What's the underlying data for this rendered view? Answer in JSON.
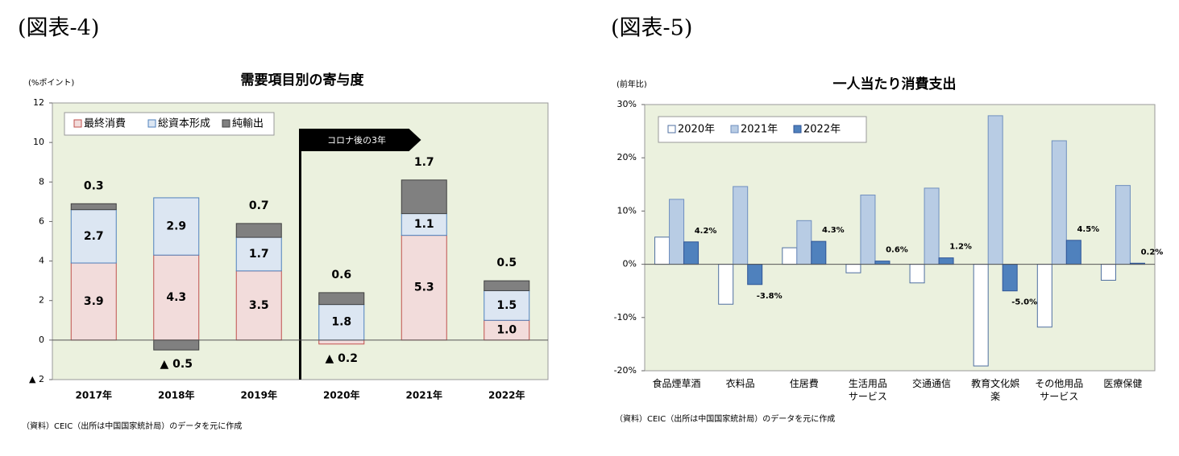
{
  "chart_data": [
    {
      "type": "bar",
      "stacked": true,
      "figure_label": "(図表-4)",
      "title": "需要項目別の寄与度",
      "ylabel": "(%ポイント)",
      "annotation": "コロナ後の3年",
      "source": "（資料）CEIC（出所は中国国家統計局）のデータを元に作成",
      "categories": [
        "2017年",
        "2018年",
        "2019年",
        "2020年",
        "2021年",
        "2022年"
      ],
      "series": [
        {
          "name": "最終消費",
          "color": "#f2dcdb",
          "edgecolor": "#c0504d",
          "values": [
            3.9,
            4.3,
            3.5,
            -0.2,
            5.3,
            1.0
          ],
          "value_labels": [
            "3.9",
            "4.3",
            "3.5",
            "▲ 0.2",
            "5.3",
            "1.0"
          ]
        },
        {
          "name": "総資本形成",
          "color": "#dce6f2",
          "edgecolor": "#4f81bd",
          "values": [
            2.7,
            2.9,
            1.7,
            1.8,
            1.1,
            1.5
          ],
          "value_labels": [
            "2.7",
            "2.9",
            "1.7",
            "1.8",
            "1.1",
            "1.5"
          ]
        },
        {
          "name": "純輸出",
          "color": "#808080",
          "edgecolor": "#404040",
          "values": [
            0.3,
            -0.5,
            0.7,
            0.6,
            1.7,
            0.5
          ],
          "value_labels": [
            "0.3",
            "▲ 0.5",
            "0.7",
            "0.6",
            "1.7",
            "0.5"
          ]
        }
      ],
      "ylim": [
        -2,
        12
      ],
      "yticks": [
        {
          "value": -2,
          "label": "▲ 2"
        },
        0,
        2,
        4,
        6,
        8,
        10,
        12
      ],
      "legend": "upper left"
    },
    {
      "type": "bar",
      "stacked": false,
      "figure_label": "(図表-5)",
      "title": "一人当たり消費支出",
      "ylabel": "(前年比)",
      "source": "（資料）CEIC（出所は中国国家統計局）のデータを元に作成",
      "categories": [
        "食品煙草酒",
        "衣料品",
        "住居費",
        "生活用品\nサービス",
        "交通通信",
        "教育文化娯\n楽",
        "その他用品\nサービス",
        "医療保健"
      ],
      "series": [
        {
          "name": "2020年",
          "color": "#ffffff",
          "edgecolor": "#4f6fa0",
          "values": [
            5.1,
            -7.5,
            3.1,
            -1.6,
            -3.5,
            -19.1,
            -11.8,
            -3.0
          ]
        },
        {
          "name": "2021年",
          "color": "#b8cce4",
          "edgecolor": "#6f8fbf",
          "values": [
            12.2,
            14.6,
            8.2,
            13.0,
            14.3,
            27.9,
            23.2,
            14.8
          ]
        },
        {
          "name": "2022年",
          "color": "#4f81bd",
          "edgecolor": "#2f5597",
          "values": [
            4.2,
            -3.8,
            4.3,
            0.6,
            1.2,
            -5.0,
            4.5,
            0.2
          ],
          "value_labels": [
            "4.2%",
            "-3.8%",
            "4.3%",
            "0.6%",
            "1.2%",
            "-5.0%",
            "4.5%",
            "0.2%"
          ]
        }
      ],
      "ylim": [
        -20,
        30
      ],
      "yticks": [
        {
          "value": -20,
          "label": "-20%"
        },
        {
          "value": -10,
          "label": "-10%"
        },
        {
          "value": 0,
          "label": "0%"
        },
        {
          "value": 10,
          "label": "10%"
        },
        {
          "value": 20,
          "label": "20%"
        },
        {
          "value": 30,
          "label": "30%"
        }
      ],
      "legend": "upper left"
    }
  ]
}
